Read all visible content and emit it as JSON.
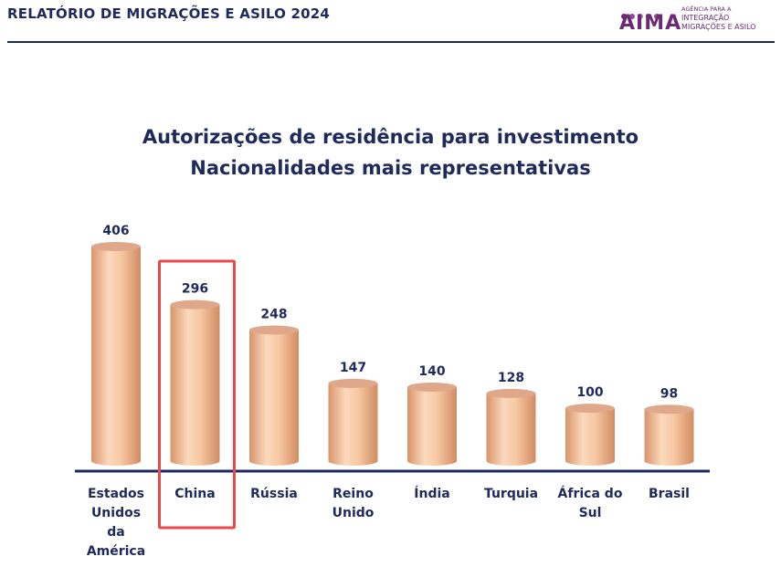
{
  "header": {
    "report_title": "RELATÓRIO DE MIGRAÇÕES E ASILO 2024",
    "logo": {
      "word": "AIMA",
      "lines": [
        "AGÊNCIA PARA A",
        "INTEGRAÇÃO",
        "MIGRAÇÕES E ASILO"
      ],
      "dot_colors": [
        "#6b2a73",
        "#8e4a96",
        "#b07ab8",
        "#6b2a73",
        "#8e4a96"
      ],
      "color": "#6b2a73"
    },
    "rule_color": "#1f2a5c"
  },
  "chart_data": {
    "type": "bar",
    "title": "Autorizações de residência para investimento",
    "subtitle": "Nacionalidades mais representativas",
    "categories": [
      "Estados Unidos da América",
      "China",
      "Rússia",
      "Reino Unido",
      "Índia",
      "Turquia",
      "África do Sul",
      "Brasil"
    ],
    "category_lines": [
      [
        "Estados",
        "Unidos",
        "da",
        "América"
      ],
      [
        "China"
      ],
      [
        "Rússia"
      ],
      [
        "Reino",
        "Unido"
      ],
      [
        "Índia"
      ],
      [
        "Turquia"
      ],
      [
        "África do",
        "Sul"
      ],
      [
        "Brasil"
      ]
    ],
    "values": [
      406,
      296,
      248,
      147,
      140,
      128,
      100,
      98
    ],
    "ylim": [
      0,
      406
    ],
    "grid": false,
    "legend": "none",
    "highlighted_category": "China",
    "colors": {
      "bar_fill": "#f5c5a0",
      "bar_edge": "#d99a72",
      "bar_top": "#e0a88a",
      "highlight_box": "#e84a4a",
      "axis": "#1f2a5c",
      "text": "#1f2a5c"
    }
  }
}
